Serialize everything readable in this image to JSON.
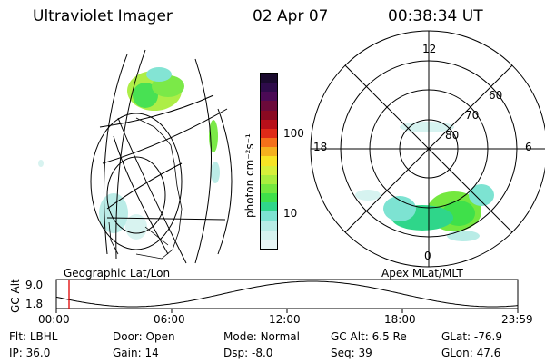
{
  "header": {
    "instrument": "Ultraviolet Imager",
    "date": "02 Apr 07",
    "time": "00:38:34 UT"
  },
  "colorbar": {
    "unit_label": "photon cm⁻²s⁻¹",
    "ticks": [
      "100",
      "10"
    ],
    "colors": [
      "#1a0a2e",
      "#2e0b4a",
      "#4b0a55",
      "#6b0a3a",
      "#8a0a22",
      "#b8101a",
      "#e02a18",
      "#f5701a",
      "#f5b01e",
      "#f7e425",
      "#d7f03a",
      "#a9ee3e",
      "#74e83f",
      "#3fe04a",
      "#2fd68a",
      "#7de3d2",
      "#b8ece6",
      "#d6f3f0",
      "#e8f6f6"
    ]
  },
  "left_map": {
    "title": "Geographic Lat/Lon"
  },
  "right_map": {
    "title": "Apex MLat/MLT",
    "mlt_labels": {
      "top": "12",
      "left": "18",
      "right": "6",
      "bottom": "0"
    },
    "lat_labels": [
      "60",
      "70",
      "80"
    ]
  },
  "altitude_plot": {
    "ylabel": "GC Alt",
    "yticks": [
      "9.0",
      "1.8"
    ],
    "xticks": [
      "00:00",
      "06:00",
      "12:00",
      "18:00",
      "23:59"
    ],
    "marker_time": "00:38",
    "colors": {
      "marker": "#e00000",
      "curve": "#000000"
    }
  },
  "footer": {
    "row1": [
      {
        "label": "Flt:",
        "value": "LBHL"
      },
      {
        "label": "Door:",
        "value": "Open"
      },
      {
        "label": "Mode:",
        "value": "Normal"
      },
      {
        "label": "GC Alt:",
        "value": "6.5 Re"
      },
      {
        "label": "GLat:",
        "value": "-76.9"
      }
    ],
    "row2": [
      {
        "label": "IP:",
        "value": "36.0"
      },
      {
        "label": "Gain:",
        "value": "14"
      },
      {
        "label": "Dsp:",
        "value": "-8.0"
      },
      {
        "label": "Seq:",
        "value": "39"
      },
      {
        "label": "GLon:",
        "value": "47.6"
      }
    ]
  }
}
